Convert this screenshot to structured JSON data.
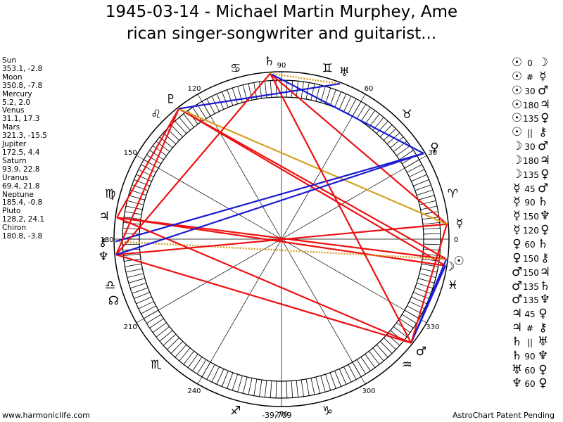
{
  "title": {
    "line1": "1945-03-14 - Michael Martin Murphey, Ame",
    "line2": "rican singer-songwriter and guitarist..."
  },
  "planets": [
    {
      "name": "Sun",
      "values": "353.1, -2.8"
    },
    {
      "name": "Moon",
      "values": "350.8, -7.8"
    },
    {
      "name": "Mercury",
      "values": "5.2, 2.0"
    },
    {
      "name": "Venus",
      "values": "31.1, 17.3"
    },
    {
      "name": "Mars",
      "values": "321.3, -15.5"
    },
    {
      "name": "Jupiter",
      "values": "172.5, 4.4"
    },
    {
      "name": "Saturn",
      "values": "93.9, 22.8"
    },
    {
      "name": "Uranus",
      "values": "69.4, 21.8"
    },
    {
      "name": "Neptune",
      "values": "185.4, -0.8"
    },
    {
      "name": "Pluto",
      "values": "128.2, 24.1"
    },
    {
      "name": "Chiron",
      "values": "180.8, -3.8"
    }
  ],
  "planet_glyphs": {
    "sun": "☉",
    "moon": "☽",
    "mercury": "☿",
    "venus": "♀",
    "mars": "♂",
    "jupiter": "♃",
    "saturn": "♄",
    "uranus": "♅",
    "neptune": "♆",
    "pluto": "♇",
    "chiron": "⚷",
    "node": "☊"
  },
  "aspects": [
    {
      "p1": "☉",
      "asp": "0",
      "p2": "☽"
    },
    {
      "p1": "☉",
      "asp": "#",
      "p2": "☿"
    },
    {
      "p1": "☉",
      "asp": "30",
      "p2": "♂"
    },
    {
      "p1": "☉",
      "asp": "180",
      "p2": "♃"
    },
    {
      "p1": "☉",
      "asp": "135",
      "p2": "♀"
    },
    {
      "p1": "☉",
      "asp": "||",
      "p2": "⚷"
    },
    {
      "p1": "☽",
      "asp": "30",
      "p2": "♂"
    },
    {
      "p1": "☽",
      "asp": "180",
      "p2": "♃"
    },
    {
      "p1": "☽",
      "asp": "135",
      "p2": "♀"
    },
    {
      "p1": "☿",
      "asp": "45",
      "p2": "♂"
    },
    {
      "p1": "☿",
      "asp": "90",
      "p2": "♄"
    },
    {
      "p1": "☿",
      "asp": "150",
      "p2": "♆"
    },
    {
      "p1": "☿",
      "asp": "120",
      "p2": "♀"
    },
    {
      "p1": "♀",
      "asp": "60",
      "p2": "♄"
    },
    {
      "p1": "♀",
      "asp": "150",
      "p2": "⚷"
    },
    {
      "p1": "♂",
      "asp": "150",
      "p2": "♃"
    },
    {
      "p1": "♂",
      "asp": "135",
      "p2": "♄"
    },
    {
      "p1": "♂",
      "asp": "135",
      "p2": "♆"
    },
    {
      "p1": "♃",
      "asp": "45",
      "p2": "♀"
    },
    {
      "p1": "♃",
      "asp": "#",
      "p2": "⚷"
    },
    {
      "p1": "♄",
      "asp": "||",
      "p2": "♅"
    },
    {
      "p1": "♄",
      "asp": "90",
      "p2": "♆"
    },
    {
      "p1": "♅",
      "asp": "60",
      "p2": "♀"
    },
    {
      "p1": "♆",
      "asp": "60",
      "p2": "♀"
    }
  ],
  "wheel": {
    "degree_labels": [
      "0",
      "30",
      "60",
      "90",
      "120",
      "150",
      "180",
      "210",
      "240",
      "270",
      "300",
      "330"
    ],
    "zodiac_signs": [
      "♈",
      "♉",
      "♊",
      "♋",
      "♌",
      "♍",
      "♎",
      "♏",
      "♐",
      "♑",
      "♒",
      "♓"
    ],
    "chart_points": [
      {
        "name": "sun",
        "lon": 353.1
      },
      {
        "name": "moon",
        "lon": 350.8
      },
      {
        "name": "mercury",
        "lon": 5.2
      },
      {
        "name": "venus",
        "lon": 31.1
      },
      {
        "name": "mars",
        "lon": 321.3
      },
      {
        "name": "jupiter",
        "lon": 172.5
      },
      {
        "name": "saturn",
        "lon": 93.9
      },
      {
        "name": "uranus",
        "lon": 69.4
      },
      {
        "name": "neptune",
        "lon": 185.4
      },
      {
        "name": "pluto",
        "lon": 128.2
      },
      {
        "name": "chiron",
        "lon": 180.8
      }
    ],
    "node_lon": 200,
    "node_label": "☊",
    "aspect_lines": [
      {
        "a": "sun",
        "b": "jupiter",
        "color": "red"
      },
      {
        "a": "moon",
        "b": "jupiter",
        "color": "red"
      },
      {
        "a": "sun",
        "b": "pluto",
        "color": "red"
      },
      {
        "a": "moon",
        "b": "pluto",
        "color": "red"
      },
      {
        "a": "sun",
        "b": "mars",
        "color": "blue"
      },
      {
        "a": "moon",
        "b": "mars",
        "color": "blue"
      },
      {
        "a": "sun",
        "b": "chiron",
        "color": "gold-dotted"
      },
      {
        "a": "mercury",
        "b": "saturn",
        "color": "red"
      },
      {
        "a": "mercury",
        "b": "neptune",
        "color": "red"
      },
      {
        "a": "mercury",
        "b": "pluto",
        "color": "gold"
      },
      {
        "a": "mercury",
        "b": "mars",
        "color": "red"
      },
      {
        "a": "venus",
        "b": "saturn",
        "color": "blue"
      },
      {
        "a": "venus",
        "b": "chiron",
        "color": "blue"
      },
      {
        "a": "mars",
        "b": "jupiter",
        "color": "red"
      },
      {
        "a": "mars",
        "b": "saturn",
        "color": "red"
      },
      {
        "a": "mars",
        "b": "neptune",
        "color": "red"
      },
      {
        "a": "jupiter",
        "b": "pluto",
        "color": "red"
      },
      {
        "a": "saturn",
        "b": "uranus",
        "color": "gold-dotted"
      },
      {
        "a": "saturn",
        "b": "neptune",
        "color": "red"
      },
      {
        "a": "uranus",
        "b": "pluto",
        "color": "blue"
      },
      {
        "a": "neptune",
        "b": "pluto",
        "color": "red"
      },
      {
        "a": "neptune",
        "b": "venus",
        "color": "blue"
      }
    ]
  },
  "colors": {
    "red": "#ee1111",
    "blue": "#1a1ad6",
    "gold": "#d4a020",
    "ring": "#000000"
  },
  "footer": {
    "website": "www.harmoniclife.com",
    "center_value": "-39,709",
    "patent": "AstroChart Patent Pending"
  }
}
